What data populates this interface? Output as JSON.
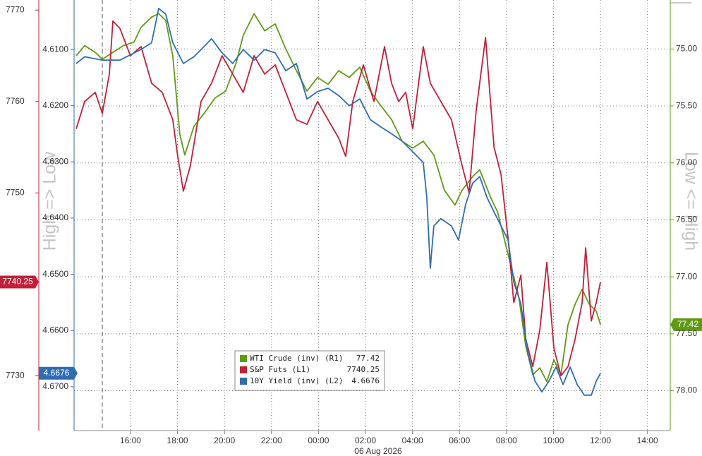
{
  "chart_data": {
    "type": "line",
    "ylabel": "High => Low",
    "y2label": "Low <= High",
    "date_label": "06 Aug 2026",
    "xlim": [
      13.6,
      38.97
    ],
    "xticks": [
      {
        "value": 16,
        "label": "16:00"
      },
      {
        "value": 18,
        "label": "18:00"
      },
      {
        "value": 20,
        "label": "20:00"
      },
      {
        "value": 22,
        "label": "22:00"
      },
      {
        "value": 24,
        "label": "00:00"
      },
      {
        "value": 26,
        "label": "02:00"
      },
      {
        "value": 28,
        "label": "04:00"
      },
      {
        "value": 30,
        "label": "06:00"
      },
      {
        "value": 32,
        "label": "08:00"
      },
      {
        "value": 34,
        "label": "10:00"
      },
      {
        "value": 36,
        "label": "12:00"
      },
      {
        "value": 38,
        "label": "14:00"
      }
    ],
    "ylim": [
      7724.0,
      7771.1
    ],
    "yticks": [
      7730,
      7750,
      7760,
      7770
    ],
    "y2lim": [
      78.35,
      74.57
    ],
    "y2ticks": [
      {
        "value": 75,
        "label": "75.00"
      },
      {
        "value": 75.5,
        "label": "75.50"
      },
      {
        "value": 76,
        "label": "76.00"
      },
      {
        "value": 76.5,
        "label": "76.50"
      },
      {
        "value": 77,
        "label": "77.00"
      },
      {
        "value": 77.5,
        "label": "77.50"
      },
      {
        "value": 78,
        "label": "78.00"
      }
    ],
    "y3lim": [
      4.6778,
      4.6012
    ],
    "y3ticks": [
      {
        "value": 4.61,
        "label": "4.6100"
      },
      {
        "value": 4.62,
        "label": "4.6200"
      },
      {
        "value": 4.63,
        "label": "4.6300"
      },
      {
        "value": 4.64,
        "label": "4.6400"
      },
      {
        "value": 4.65,
        "label": "4.6500"
      },
      {
        "value": 4.66,
        "label": "4.6600"
      },
      {
        "value": 4.67,
        "label": "4.6700"
      }
    ],
    "grid": true,
    "legend": "lower center",
    "series": [
      {
        "name": "WTI Crude (inv) (R1)",
        "color": "#5f9a17",
        "axis": "y2",
        "x": [
          13.69,
          14.05,
          14.5,
          14.8,
          15.25,
          15.7,
          16.15,
          16.45,
          16.9,
          17.2,
          17.5,
          17.8,
          18.1,
          18.31,
          18.7,
          19.15,
          19.6,
          20.05,
          20.5,
          20.8,
          21.26,
          21.71,
          22.16,
          22.61,
          23.06,
          23.51,
          23.96,
          24.41,
          24.86,
          25.31,
          25.76,
          26.21,
          26.66,
          27.11,
          27.56,
          28.01,
          28.46,
          28.91,
          29.36,
          29.81,
          30.11,
          30.56,
          30.86,
          31.32,
          31.62,
          31.92,
          32.22,
          32.52,
          32.82,
          33.12,
          33.42,
          33.72,
          34.02,
          34.32,
          34.62,
          34.92,
          35.22,
          35.52,
          35.82,
          36
        ],
        "values": [
          75.06,
          74.97,
          75.03,
          75.09,
          75.03,
          74.97,
          74.94,
          74.81,
          74.72,
          74.69,
          74.75,
          75.06,
          75.75,
          75.93,
          75.68,
          75.56,
          75.43,
          75.37,
          75.12,
          74.88,
          74.69,
          74.84,
          74.78,
          75.0,
          75.19,
          75.37,
          75.25,
          75.31,
          75.19,
          75.25,
          75.16,
          75.37,
          75.5,
          75.62,
          75.81,
          75.87,
          75.81,
          75.93,
          76.24,
          76.37,
          76.24,
          76.12,
          76.06,
          76.3,
          76.43,
          76.68,
          76.93,
          77.17,
          77.61,
          77.86,
          77.8,
          77.92,
          77.73,
          77.86,
          77.42,
          77.24,
          77.11,
          77.24,
          77.3,
          77.42
        ]
      },
      {
        "name": "S&P Futs (L1)",
        "color": "#c11f3a",
        "axis": "y",
        "x": [
          13.69,
          14.05,
          14.5,
          14.8,
          15.1,
          15.25,
          15.55,
          16,
          16.45,
          16.9,
          17.35,
          17.8,
          18.01,
          18.25,
          18.55,
          19,
          19.45,
          19.9,
          20.35,
          20.8,
          21.26,
          21.71,
          22.16,
          22.61,
          23.06,
          23.51,
          23.96,
          24.41,
          24.86,
          25.16,
          25.46,
          25.91,
          26.36,
          26.81,
          27.11,
          27.41,
          27.71,
          28.01,
          28.46,
          28.76,
          29.21,
          29.66,
          30.11,
          30.41,
          30.71,
          31.11,
          31.47,
          31.77,
          32.07,
          32.31,
          32.61,
          32.82,
          33.12,
          33.42,
          33.72,
          34.02,
          34.32,
          34.62,
          34.92,
          35.22,
          35.37,
          35.61,
          35.82,
          36
        ],
        "values": [
          7757,
          7760,
          7761,
          7758.7,
          7763,
          7768.8,
          7768,
          7765,
          7766,
          7762,
          7761,
          7758,
          7754,
          7750.2,
          7753,
          7760,
          7762,
          7765,
          7763,
          7761,
          7765,
          7763,
          7764,
          7761,
          7758,
          7757.5,
          7760,
          7758,
          7756,
          7754,
          7760,
          7764,
          7760,
          7766,
          7762,
          7760,
          7761,
          7757,
          7766,
          7762,
          7760,
          7758,
          7753,
          7750,
          7759,
          7767,
          7755,
          7752,
          7745,
          7738,
          7741,
          7734,
          7731,
          7735,
          7742.4,
          7733,
          7730,
          7731,
          7734,
          7738,
          7744,
          7736,
          7738,
          7740.25
        ]
      },
      {
        "name": "10Y Yield (inv) (L2)",
        "color": "#2f6cb0",
        "axis": "y3",
        "x": [
          13.69,
          14.05,
          14.8,
          15.55,
          16.45,
          16.9,
          17.2,
          17.5,
          17.8,
          18.25,
          18.7,
          19.15,
          19.45,
          19.9,
          20.35,
          20.8,
          21.26,
          21.71,
          22.16,
          22.61,
          23.06,
          23.51,
          23.96,
          24.41,
          24.86,
          25.31,
          25.76,
          26.21,
          26.66,
          27.11,
          27.56,
          28.01,
          28.46,
          28.61,
          28.76,
          28.91,
          29.21,
          29.66,
          29.96,
          30.26,
          30.56,
          30.86,
          31.17,
          31.47,
          31.77,
          32.07,
          32.31,
          32.61,
          32.91,
          33.21,
          33.51,
          33.81,
          34.11,
          34.41,
          34.71,
          35.01,
          35.31,
          35.61,
          35.82,
          36
        ],
        "values": [
          4.6125,
          4.6113,
          4.6119,
          4.6119,
          4.61,
          4.6088,
          4.6027,
          4.6037,
          4.6088,
          4.6125,
          4.6113,
          4.6094,
          4.6081,
          4.6106,
          4.6125,
          4.61,
          4.6119,
          4.61,
          4.6106,
          4.6138,
          4.6125,
          4.6188,
          4.6175,
          4.6169,
          4.6182,
          4.62,
          4.6188,
          4.6225,
          4.6238,
          4.625,
          4.6263,
          4.6282,
          4.6301,
          4.6363,
          4.6489,
          4.6414,
          4.6401,
          4.6414,
          4.6439,
          4.6376,
          4.6338,
          4.6326,
          4.6363,
          4.6389,
          4.6414,
          4.6439,
          4.6514,
          4.6552,
          4.664,
          4.669,
          4.6709,
          4.669,
          4.6665,
          4.6696,
          4.6665,
          4.6696,
          4.6715,
          4.6715,
          4.669,
          4.6676
        ]
      }
    ]
  }
}
